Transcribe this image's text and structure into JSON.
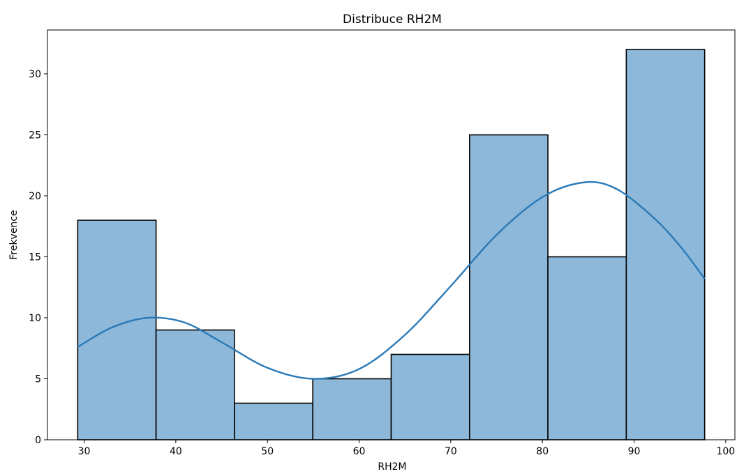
{
  "chart_data": {
    "type": "bar",
    "title": "Distribuce RH2M",
    "xlabel": "RH2M",
    "ylabel": "Frekvence",
    "bin_edges": [
      29.3,
      37.85,
      46.4,
      54.95,
      63.5,
      72.05,
      80.6,
      89.15,
      97.7
    ],
    "values": [
      18,
      9,
      3,
      5,
      7,
      25,
      15,
      32
    ],
    "kde_curve": {
      "x": [
        29.3,
        33.0,
        37.0,
        41.0,
        45.0,
        50.0,
        55.0,
        60.0,
        65.0,
        70.0,
        75.0,
        80.0,
        84.5,
        88.0,
        92.0,
        95.0,
        97.7
      ],
      "y": [
        7.6,
        9.2,
        10.0,
        9.6,
        8.0,
        5.9,
        5.0,
        5.8,
        8.6,
        12.6,
        16.8,
        19.9,
        21.1,
        20.6,
        18.3,
        15.9,
        13.2
      ]
    },
    "xlim": [
      26.0,
      101.0
    ],
    "ylim": [
      0,
      33.6
    ],
    "xticks": [
      30,
      40,
      50,
      60,
      70,
      80,
      90,
      100
    ],
    "yticks": [
      0,
      5,
      10,
      15,
      20,
      25,
      30
    ],
    "grid": false,
    "colors": {
      "bar_fill": "#8db8d9",
      "bar_edge": "#000000",
      "kde_line": "#2a7ab8"
    }
  }
}
